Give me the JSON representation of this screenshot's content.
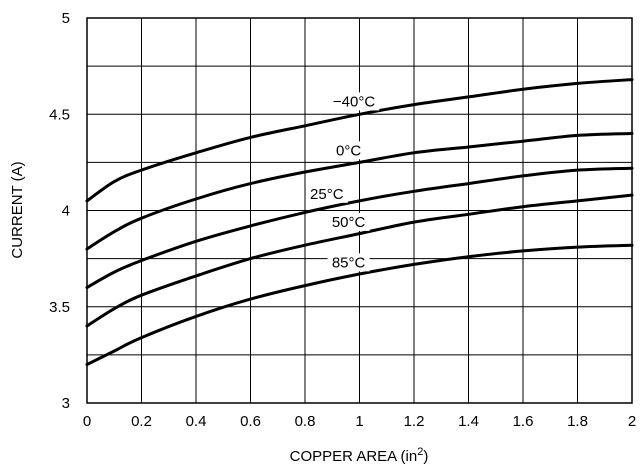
{
  "chart_data": {
    "type": "line",
    "title": "",
    "xlabel": "COPPER AREA (in",
    "xlabel_superscript": "2",
    "xlabel_suffix": ")",
    "ylabel": "CURRENT (A)",
    "xlim": [
      0,
      2
    ],
    "ylim": [
      3,
      5
    ],
    "xticks": [
      "0",
      "0.2",
      "0.4",
      "0.6",
      "0.8",
      "1",
      "1.2",
      "1.4",
      "1.6",
      "1.8",
      "2"
    ],
    "yticks": [
      "3",
      "3.5",
      "4",
      "4.5",
      "5"
    ],
    "grid": true,
    "legend": "none",
    "series": [
      {
        "name": "−40°C",
        "x": [
          0,
          0.1,
          0.2,
          0.4,
          0.6,
          0.8,
          1.0,
          1.2,
          1.4,
          1.6,
          1.8,
          2.0
        ],
        "values": [
          4.05,
          4.15,
          4.21,
          4.3,
          4.38,
          4.44,
          4.5,
          4.55,
          4.59,
          4.63,
          4.66,
          4.68
        ]
      },
      {
        "name": "0°C",
        "x": [
          0,
          0.1,
          0.2,
          0.4,
          0.6,
          0.8,
          1.0,
          1.2,
          1.4,
          1.6,
          1.8,
          2.0
        ],
        "values": [
          3.8,
          3.89,
          3.96,
          4.06,
          4.14,
          4.2,
          4.25,
          4.3,
          4.33,
          4.36,
          4.39,
          4.4
        ]
      },
      {
        "name": "25°C",
        "x": [
          0,
          0.1,
          0.2,
          0.4,
          0.6,
          0.8,
          1.0,
          1.2,
          1.4,
          1.6,
          1.8,
          2.0
        ],
        "values": [
          3.6,
          3.68,
          3.74,
          3.84,
          3.92,
          3.99,
          4.05,
          4.1,
          4.14,
          4.18,
          4.21,
          4.22
        ]
      },
      {
        "name": "50°C",
        "x": [
          0,
          0.1,
          0.2,
          0.4,
          0.6,
          0.8,
          1.0,
          1.2,
          1.4,
          1.6,
          1.8,
          2.0
        ],
        "values": [
          3.4,
          3.49,
          3.56,
          3.66,
          3.75,
          3.82,
          3.88,
          3.94,
          3.98,
          4.02,
          4.05,
          4.08
        ]
      },
      {
        "name": "85°C",
        "x": [
          0,
          0.1,
          0.2,
          0.4,
          0.6,
          0.8,
          1.0,
          1.2,
          1.4,
          1.6,
          1.8,
          2.0
        ],
        "values": [
          3.2,
          3.27,
          3.34,
          3.45,
          3.54,
          3.61,
          3.67,
          3.72,
          3.76,
          3.79,
          3.81,
          3.82
        ]
      }
    ],
    "line_color": "#000000",
    "grid_color": "#000000"
  }
}
